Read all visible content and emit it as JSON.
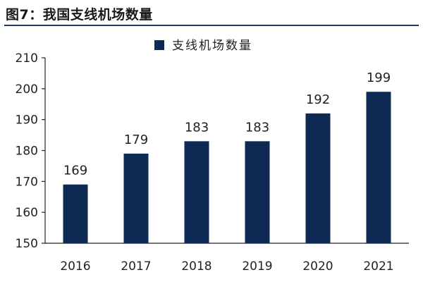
{
  "figure_title": "图7：我国支线机场数量",
  "colors": {
    "bar": "#0e2a54",
    "axis": "#222222",
    "title_rule": "#1f3a6b"
  },
  "chart_data": {
    "type": "bar",
    "title": "",
    "xlabel": "",
    "ylabel": "",
    "categories": [
      "2016",
      "2017",
      "2018",
      "2019",
      "2020",
      "2021"
    ],
    "series": [
      {
        "name": "支线机场数量",
        "values": [
          169,
          179,
          183,
          183,
          192,
          199
        ]
      }
    ],
    "ylim": [
      150,
      210
    ],
    "yticks": [
      150,
      160,
      170,
      180,
      190,
      200,
      210
    ],
    "grid": false,
    "legend_position": "top-center",
    "data_labels": true
  }
}
